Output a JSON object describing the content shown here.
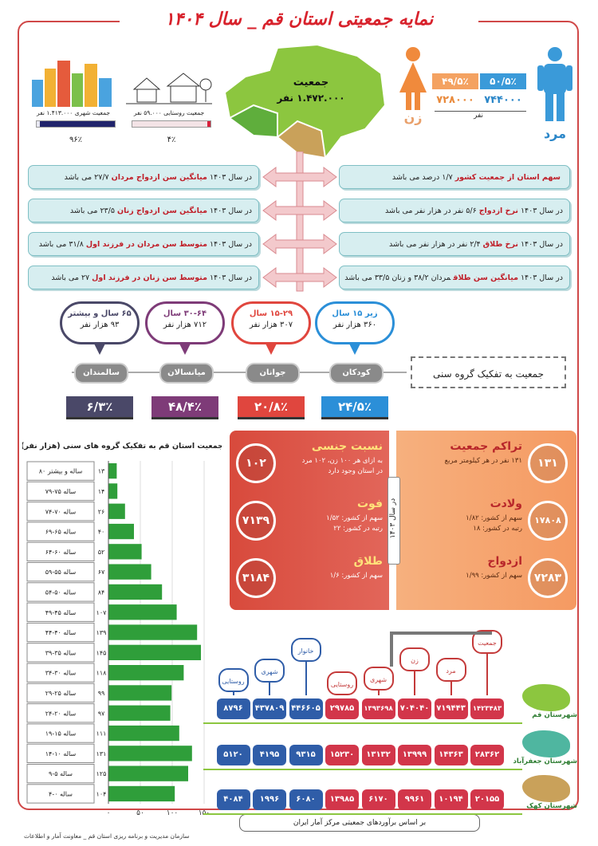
{
  "title": "نمایه جمعیتی استان قم _ سال ۱۴۰۴",
  "gender": {
    "male": {
      "label": "مرد",
      "percent": "۵۰/۵٪",
      "count": "۷۴۴۰۰۰"
    },
    "female": {
      "label": "زن",
      "percent": "۴۹/۵٪",
      "count": "۷۲۸۰۰۰"
    },
    "unit": "نفر"
  },
  "map": {
    "label": "جمعیت",
    "value": "۱.۴۷۲.۰۰۰ نفر"
  },
  "rural": {
    "label": "جمعیت روستایی ۵۹.۰۰۰ نفر",
    "value": 4,
    "value_label": "۴٪"
  },
  "urban": {
    "label": "جمعیت شهری ۱.۴۱۳.۰۰۰ نفر",
    "value": 96,
    "value_label": "۹۶٪"
  },
  "facts": {
    "right": [
      {
        "key": "سهم استان از جمعیت کشور",
        "rest": "۱/۷ درصد می باشد"
      },
      {
        "year": "در سال ۱۴۰۳",
        "key": "نرخ ازدواج",
        "rest": "۵/۶ نفر در هزار نفر می باشد"
      },
      {
        "year": "در سال ۱۴۰۳",
        "key": "نرخ طلاق",
        "rest": "۲/۴ نفر در هزار نفر می باشد"
      },
      {
        "year": "در سال ۱۴۰۳",
        "key": "میانگین سن طلاق",
        "rest": "مردان ۳۸/۲ و زنان ۳۳/۵ می باشد"
      }
    ],
    "left": [
      {
        "year": "در سال ۱۴۰۳",
        "key": "میانگین سن ازدواج مردان",
        "rest": "۲۷/۷ می باشد"
      },
      {
        "year": "در سال ۱۴۰۳",
        "key": "میانگین سن ازدواج زنان",
        "rest": "۲۳/۵ می باشد"
      },
      {
        "year": "در سال ۱۴۰۳",
        "key": "متوسط سن مردان در فرزند اول",
        "rest": "۳۱/۸ می باشد"
      },
      {
        "year": "در سال ۱۴۰۳",
        "key": "متوسط سن زنان در فرزند اول",
        "rest": "۲۷ می باشد"
      }
    ]
  },
  "age_heading": "جمعیت به تفکیک گروه سنی",
  "age_groups": [
    {
      "range": "زیر ۱۵ سال",
      "count": "۳۶۰ هزار نفر",
      "name": "کودکان",
      "percent": "۲۴/۵٪",
      "color": "#2b8fd8"
    },
    {
      "range": "۱۵-۲۹ سال",
      "count": "۳۰۷ هزار نفر",
      "name": "جوانان",
      "percent": "۲۰/۸٪",
      "color": "#e0463e"
    },
    {
      "range": "۳۰-۶۴ سال",
      "count": "۷۱۲ هزار نفر",
      "name": "میانسالان",
      "percent": "۴۸/۴٪",
      "color": "#7e3b78"
    },
    {
      "range": "۶۵ سال و بیشتر",
      "count": "۹۳ هزار نفر",
      "name": "سالمندان",
      "percent": "۶/۳٪",
      "color": "#4a4868"
    }
  ],
  "chart_data": {
    "type": "bar",
    "orientation": "horizontal",
    "title": "جمعیت استان قم به تفکیک گروه های سنی (هزار نفر)",
    "categories": [
      "۸۰ ساله و بیشتر",
      "۷۹-۷۵ ساله",
      "۷۴-۷۰ ساله",
      "۶۹-۶۵ ساله",
      "۶۴-۶۰ ساله",
      "۵۹-۵۵ ساله",
      "۵۴-۵۰ ساله",
      "۴۹-۴۵ ساله",
      "۴۴-۴۰ ساله",
      "۳۹-۳۵ ساله",
      "۳۴-۳۰ ساله",
      "۲۹-۲۵ ساله",
      "۲۴-۲۰ ساله",
      "۱۹-۱۵ ساله",
      "۱۴-۱۰ ساله",
      "۹-۵ ساله",
      "۴-۰ ساله"
    ],
    "values": [
      13,
      14,
      26,
      40,
      52,
      67,
      84,
      107,
      139,
      145,
      118,
      99,
      97,
      111,
      131,
      125,
      104
    ],
    "value_labels": [
      "۱۳",
      "۱۴",
      "۲۶",
      "۴۰",
      "۵۲",
      "۶۷",
      "۸۴",
      "۱۰۷",
      "۱۳۹",
      "۱۴۵",
      "۱۱۸",
      "۹۹",
      "۹۷",
      "۱۱۱",
      "۱۳۱",
      "۱۲۵",
      "۱۰۴"
    ],
    "color": "#2f9e3a",
    "xlim": [
      0,
      150
    ],
    "xticks": [
      {
        "value": 0,
        "label": "۰"
      },
      {
        "value": 50,
        "label": "۵۰"
      },
      {
        "value": 100,
        "label": "۱۰۰"
      },
      {
        "value": 150,
        "label": "۱۵۰"
      }
    ],
    "grid": true
  },
  "book": {
    "center": "در سال ۱۴۰۳",
    "right": [
      {
        "title": "تراکم جمعیت",
        "value": "۱۳۱",
        "lines": [
          "۱۳۱ نفر در هر کیلومتر مربع"
        ]
      },
      {
        "title": "ولادت",
        "value": "۱۷۸۰۸",
        "lines": [
          "سهم از کشور: ۱/۸۲",
          "رتبه در کشور: ۱۸"
        ]
      },
      {
        "title": "ازدواج",
        "value": "۷۲۸۳",
        "lines": [
          "سهم از کشور: ۱/۹۹"
        ]
      }
    ],
    "left": [
      {
        "title": "نسبت جنسی",
        "value": "۱۰۲",
        "lines": [
          "به ازای هر ۱۰۰ زن، ۱۰۲ مرد",
          "در استان وجود دارد"
        ]
      },
      {
        "title": "فوت",
        "value": "۷۱۳۹",
        "lines": [
          "سهم از کشور: ۱/۵۲",
          "رتبه در کشور: ۲۲"
        ]
      },
      {
        "title": "طلاق",
        "value": "۳۱۸۴",
        "lines": [
          "سهم از کشور: ۱/۶"
        ]
      }
    ]
  },
  "table": {
    "headers": [
      "جمعیت",
      "مرد",
      "زن",
      "شهری",
      "روستایی",
      "خانوار",
      "شهری",
      "روستایی"
    ],
    "rows": [
      {
        "name": "شهرستان قم",
        "cells": [
          "۱۴۲۳۴۸۳",
          "۷۱۹۴۴۳",
          "۷۰۴۰۴۰",
          "۱۳۹۳۶۹۸",
          "۲۹۷۸۵",
          "۴۴۶۶۰۵",
          "۴۳۷۸۰۹",
          "۸۷۹۶"
        ]
      },
      {
        "name": "شهرستان جعفرآباد",
        "cells": [
          "۲۸۳۶۲",
          "۱۴۳۶۳",
          "۱۳۹۹۹",
          "۱۳۱۳۲",
          "۱۵۲۳۰",
          "۹۳۱۵",
          "۴۱۹۵",
          "۵۱۲۰"
        ]
      },
      {
        "name": "شهرستان کهک",
        "cells": [
          "۲۰۱۵۵",
          "۱۰۱۹۴",
          "۹۹۶۱",
          "۶۱۷۰",
          "۱۳۹۸۵",
          "۶۰۸۰",
          "۱۹۹۶",
          "۴۰۸۴"
        ]
      }
    ]
  },
  "footer": {
    "source": "بر اساس برآوردهای جمعیتی مرکز آمار ایران",
    "org": "سازمان مدیریت و برنامه ریزی استان قم _ معاونت آمار و اطلاعات"
  }
}
